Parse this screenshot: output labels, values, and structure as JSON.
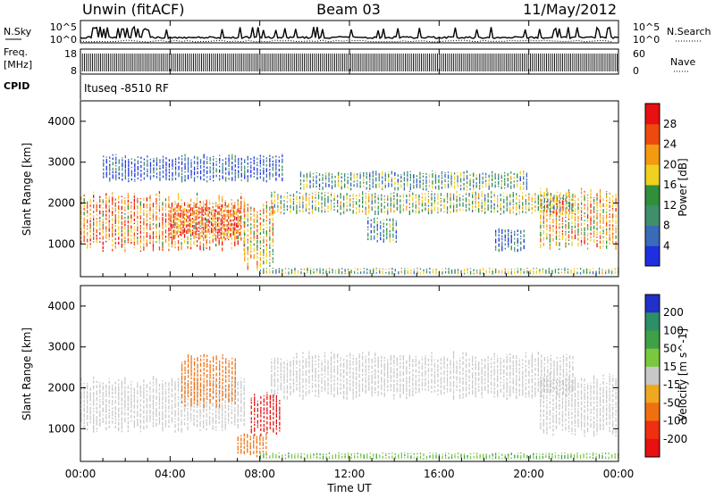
{
  "header": {
    "station": "Unwin (fitACF)",
    "beam": "Beam 03",
    "date": "11/May/2012"
  },
  "noise_panel": {
    "left_label": "N.Sky",
    "right_label": "N.Search",
    "yticks": [
      "10^5",
      "10^0"
    ],
    "right_yticks": [
      "10^5",
      "10^0"
    ]
  },
  "freq_panel": {
    "left_label_1": "Freq.",
    "left_label_2": "[MHz]",
    "yticks": [
      "18",
      "8"
    ],
    "right_label": "Nave",
    "right_yticks": [
      "60",
      "0"
    ]
  },
  "cpid": {
    "label": "CPID",
    "value": "Ituseq -8510 RF"
  },
  "colors": {
    "power_scale": [
      "#1f2fe0",
      "#3a6ab8",
      "#3f8f6c",
      "#2f8f3a",
      "#f0d020",
      "#f39a10",
      "#ee4a10",
      "#e81010"
    ],
    "velocity_scale": [
      "#2030c8",
      "#2c8f66",
      "#3fa048",
      "#7ac83e",
      "#c8c8c8",
      "#f0a820",
      "#f07010",
      "#ee3010",
      "#e81010"
    ]
  },
  "chart_data": [
    {
      "type": "heatmap",
      "title": "",
      "xlabel": "",
      "ylabel": "Slant Range [km]",
      "x_range": [
        "00:00",
        "00:00"
      ],
      "ylim": [
        200,
        4500
      ],
      "yticks": [
        1000,
        2000,
        3000,
        4000
      ],
      "colorbar": {
        "label": "Power [dB]",
        "ticks": [
          4,
          8,
          12,
          16,
          20,
          24,
          28
        ]
      },
      "blobs": [
        {
          "t0": 0.0,
          "t1": 7.3,
          "r0": 800,
          "r1": 2300,
          "value": 22
        },
        {
          "t0": 4.0,
          "t1": 7.2,
          "r0": 1100,
          "r1": 2000,
          "value": 27
        },
        {
          "t0": 7.3,
          "t1": 8.6,
          "r0": 300,
          "r1": 2100,
          "value": 19
        },
        {
          "t0": 8.5,
          "t1": 22.0,
          "r0": 1700,
          "r1": 2300,
          "value": 15
        },
        {
          "t0": 9.8,
          "t1": 20.0,
          "r0": 2300,
          "r1": 2800,
          "value": 12
        },
        {
          "t0": 12.8,
          "t1": 14.2,
          "r0": 1000,
          "r1": 1700,
          "value": 10
        },
        {
          "t0": 18.5,
          "t1": 19.8,
          "r0": 800,
          "r1": 1400,
          "value": 8
        },
        {
          "t0": 20.5,
          "t1": 24.0,
          "r0": 800,
          "r1": 2400,
          "value": 20
        },
        {
          "t0": 1.0,
          "t1": 9.0,
          "r0": 2500,
          "r1": 3200,
          "value": 6
        },
        {
          "t0": 8.0,
          "t1": 24.0,
          "r0": 250,
          "r1": 420,
          "value": 14
        }
      ]
    },
    {
      "type": "heatmap",
      "title": "",
      "xlabel": "Time UT",
      "ylabel": "Slant Range [km]",
      "x_range": [
        "00:00",
        "00:00"
      ],
      "xticks": [
        "00:00",
        "04:00",
        "08:00",
        "12:00",
        "16:00",
        "20:00",
        "00:00"
      ],
      "ylim": [
        200,
        4500
      ],
      "yticks": [
        1000,
        2000,
        3000,
        4000
      ],
      "colorbar": {
        "label": "Velocity [m s^-1]",
        "ticks": [
          200,
          100,
          50,
          15,
          -15,
          -50,
          -100,
          -200
        ]
      },
      "blobs": [
        {
          "t0": 0.0,
          "t1": 7.3,
          "r0": 900,
          "r1": 2300,
          "value": 0
        },
        {
          "t0": 4.5,
          "t1": 7.0,
          "r0": 1500,
          "r1": 2900,
          "value": -55
        },
        {
          "t0": 7.6,
          "t1": 9.0,
          "r0": 800,
          "r1": 1900,
          "value": -200
        },
        {
          "t0": 7.0,
          "t1": 8.3,
          "r0": 300,
          "r1": 900,
          "value": -60
        },
        {
          "t0": 8.5,
          "t1": 22.0,
          "r0": 1700,
          "r1": 2900,
          "value": 0
        },
        {
          "t0": 20.5,
          "t1": 24.0,
          "r0": 800,
          "r1": 2400,
          "value": 0
        },
        {
          "t0": 8.0,
          "t1": 24.0,
          "r0": 250,
          "r1": 420,
          "value": 30
        }
      ]
    }
  ],
  "time_axis": {
    "label": "Time UT",
    "ticks": [
      "00:00",
      "04:00",
      "08:00",
      "12:00",
      "16:00",
      "20:00",
      "00:00"
    ]
  }
}
